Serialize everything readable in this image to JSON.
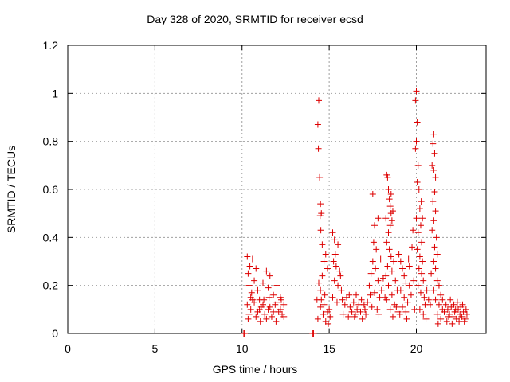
{
  "chart_data": {
    "type": "scatter",
    "title": "Day 328 of 2020, SRMTID for receiver ecsd",
    "xlabel": "GPS time / hours",
    "ylabel": "SRMTID / TECUs",
    "xlim": [
      0,
      24
    ],
    "ylim": [
      0,
      1.2
    ],
    "xticks": [
      0,
      5,
      10,
      15,
      20
    ],
    "yticks": [
      0,
      0.2,
      0.4,
      0.6,
      0.8,
      1,
      1.2
    ],
    "xtick_labels": [
      "0",
      "5",
      "10",
      "15",
      "20"
    ],
    "ytick_labels": [
      "0",
      "0.2",
      "0.4",
      "0.6",
      "0.8",
      "1",
      "1.2"
    ],
    "grid": true,
    "marker": "+",
    "color": "#dd0000",
    "series": [
      {
        "name": "SRMTID",
        "points": [
          [
            10.1,
            0.0
          ],
          [
            10.15,
            0.0
          ],
          [
            14.05,
            0.0
          ],
          [
            14.1,
            0.0
          ],
          [
            10.3,
            0.32
          ],
          [
            10.35,
            0.25
          ],
          [
            10.4,
            0.2
          ],
          [
            10.45,
            0.28
          ],
          [
            10.5,
            0.15
          ],
          [
            10.6,
            0.31
          ],
          [
            10.7,
            0.22
          ],
          [
            10.8,
            0.27
          ],
          [
            10.9,
            0.18
          ],
          [
            11.0,
            0.14
          ],
          [
            11.2,
            0.21
          ],
          [
            11.4,
            0.26
          ],
          [
            11.5,
            0.19
          ],
          [
            11.6,
            0.24
          ],
          [
            11.8,
            0.16
          ],
          [
            12.0,
            0.2
          ],
          [
            12.2,
            0.15
          ],
          [
            12.4,
            0.12
          ],
          [
            10.3,
            0.12
          ],
          [
            10.5,
            0.1
          ],
          [
            10.7,
            0.13
          ],
          [
            10.9,
            0.09
          ],
          [
            11.1,
            0.11
          ],
          [
            11.3,
            0.08
          ],
          [
            11.5,
            0.1
          ],
          [
            11.7,
            0.07
          ],
          [
            11.9,
            0.12
          ],
          [
            12.1,
            0.09
          ],
          [
            12.3,
            0.08
          ],
          [
            10.4,
            0.08
          ],
          [
            10.6,
            0.14
          ],
          [
            10.8,
            0.07
          ],
          [
            11.0,
            0.1
          ],
          [
            11.2,
            0.12
          ],
          [
            11.4,
            0.06
          ],
          [
            11.6,
            0.11
          ],
          [
            11.8,
            0.09
          ],
          [
            12.0,
            0.13
          ],
          [
            12.2,
            0.1
          ],
          [
            12.4,
            0.07
          ],
          [
            10.35,
            0.06
          ],
          [
            10.55,
            0.17
          ],
          [
            11.25,
            0.14
          ],
          [
            11.05,
            0.05
          ],
          [
            11.55,
            0.15
          ],
          [
            11.95,
            0.05
          ],
          [
            12.25,
            0.14
          ],
          [
            14.4,
            0.97
          ],
          [
            14.35,
            0.87
          ],
          [
            14.38,
            0.77
          ],
          [
            14.45,
            0.65
          ],
          [
            14.5,
            0.54
          ],
          [
            14.55,
            0.5
          ],
          [
            14.48,
            0.49
          ],
          [
            14.52,
            0.43
          ],
          [
            14.6,
            0.37
          ],
          [
            14.7,
            0.3
          ],
          [
            14.8,
            0.33
          ],
          [
            14.9,
            0.27
          ],
          [
            14.4,
            0.21
          ],
          [
            14.5,
            0.18
          ],
          [
            14.6,
            0.24
          ],
          [
            14.3,
            0.14
          ],
          [
            14.5,
            0.11
          ],
          [
            14.7,
            0.12
          ],
          [
            14.9,
            0.09
          ],
          [
            14.35,
            0.06
          ],
          [
            14.65,
            0.08
          ],
          [
            14.8,
            0.05
          ],
          [
            15.0,
            0.1
          ],
          [
            15.05,
            0.07
          ],
          [
            14.55,
            0.14
          ],
          [
            14.75,
            0.16
          ],
          [
            14.95,
            0.04
          ],
          [
            15.2,
            0.42
          ],
          [
            15.3,
            0.39
          ],
          [
            15.5,
            0.37
          ],
          [
            15.25,
            0.3
          ],
          [
            15.4,
            0.28
          ],
          [
            15.6,
            0.26
          ],
          [
            15.3,
            0.22
          ],
          [
            15.5,
            0.2
          ],
          [
            15.7,
            0.18
          ],
          [
            15.2,
            0.15
          ],
          [
            15.45,
            0.13
          ],
          [
            15.75,
            0.14
          ],
          [
            15.9,
            0.12
          ],
          [
            16.0,
            0.15
          ],
          [
            16.2,
            0.11
          ],
          [
            16.4,
            0.13
          ],
          [
            16.6,
            0.1
          ],
          [
            16.8,
            0.09
          ],
          [
            17.0,
            0.12
          ],
          [
            15.8,
            0.08
          ],
          [
            16.1,
            0.07
          ],
          [
            16.3,
            0.09
          ],
          [
            16.5,
            0.08
          ],
          [
            16.7,
            0.12
          ],
          [
            16.9,
            0.06
          ],
          [
            15.35,
            0.33
          ],
          [
            15.65,
            0.24
          ],
          [
            16.15,
            0.16
          ],
          [
            16.45,
            0.07
          ],
          [
            16.85,
            0.14
          ],
          [
            17.1,
            0.08
          ],
          [
            17.05,
            0.1
          ],
          [
            16.55,
            0.16
          ],
          [
            17.5,
            0.58
          ],
          [
            17.8,
            0.48
          ],
          [
            17.6,
            0.45
          ],
          [
            17.55,
            0.38
          ],
          [
            17.7,
            0.35
          ],
          [
            17.5,
            0.3
          ],
          [
            17.65,
            0.27
          ],
          [
            17.4,
            0.25
          ],
          [
            17.8,
            0.22
          ],
          [
            17.3,
            0.2
          ],
          [
            17.6,
            0.17
          ],
          [
            17.9,
            0.15
          ],
          [
            17.2,
            0.13
          ],
          [
            17.45,
            0.11
          ],
          [
            17.75,
            0.1
          ],
          [
            18.0,
            0.18
          ],
          [
            18.1,
            0.23
          ],
          [
            17.95,
            0.31
          ],
          [
            17.35,
            0.16
          ],
          [
            17.85,
            0.08
          ],
          [
            18.3,
            0.66
          ],
          [
            18.35,
            0.65
          ],
          [
            18.4,
            0.6
          ],
          [
            18.45,
            0.56
          ],
          [
            18.5,
            0.53
          ],
          [
            18.55,
            0.5
          ],
          [
            18.6,
            0.47
          ],
          [
            18.5,
            0.45
          ],
          [
            18.4,
            0.42
          ],
          [
            18.3,
            0.38
          ],
          [
            18.45,
            0.35
          ],
          [
            18.55,
            0.32
          ],
          [
            18.7,
            0.3
          ],
          [
            18.35,
            0.28
          ],
          [
            18.6,
            0.26
          ],
          [
            18.25,
            0.24
          ],
          [
            18.8,
            0.22
          ],
          [
            18.4,
            0.2
          ],
          [
            18.9,
            0.18
          ],
          [
            18.6,
            0.16
          ],
          [
            18.3,
            0.14
          ],
          [
            18.75,
            0.12
          ],
          [
            18.5,
            0.1
          ],
          [
            18.95,
            0.09
          ],
          [
            18.65,
            0.07
          ],
          [
            18.85,
            0.11
          ],
          [
            18.2,
            0.15
          ],
          [
            18.55,
            0.58
          ],
          [
            18.65,
            0.51
          ],
          [
            18.25,
            0.48
          ],
          [
            19.0,
            0.33
          ],
          [
            19.1,
            0.3
          ],
          [
            19.2,
            0.27
          ],
          [
            19.3,
            0.24
          ],
          [
            19.4,
            0.21
          ],
          [
            19.1,
            0.18
          ],
          [
            19.3,
            0.15
          ],
          [
            19.5,
            0.13
          ],
          [
            19.2,
            0.11
          ],
          [
            19.4,
            0.09
          ],
          [
            19.6,
            0.2
          ],
          [
            19.7,
            0.16
          ],
          [
            19.8,
            0.43
          ],
          [
            19.75,
            0.36
          ],
          [
            19.6,
            0.28
          ],
          [
            19.05,
            0.08
          ],
          [
            19.45,
            0.06
          ],
          [
            19.85,
            0.22
          ],
          [
            19.55,
            0.31
          ],
          [
            19.9,
            0.1
          ],
          [
            20.0,
            1.01
          ],
          [
            19.95,
            0.97
          ],
          [
            20.05,
            0.88
          ],
          [
            20.0,
            0.8
          ],
          [
            19.95,
            0.77
          ],
          [
            20.1,
            0.7
          ],
          [
            20.05,
            0.63
          ],
          [
            20.15,
            0.6
          ],
          [
            20.2,
            0.52
          ],
          [
            20.0,
            0.48
          ],
          [
            20.25,
            0.45
          ],
          [
            20.1,
            0.42
          ],
          [
            20.3,
            0.38
          ],
          [
            20.05,
            0.35
          ],
          [
            20.2,
            0.32
          ],
          [
            20.35,
            0.3
          ],
          [
            20.15,
            0.27
          ],
          [
            20.3,
            0.25
          ],
          [
            20.4,
            0.22
          ],
          [
            20.1,
            0.2
          ],
          [
            20.25,
            0.17
          ],
          [
            20.45,
            0.15
          ],
          [
            20.5,
            0.12
          ],
          [
            20.2,
            0.1
          ],
          [
            20.4,
            0.08
          ],
          [
            20.55,
            0.06
          ],
          [
            20.6,
            0.18
          ],
          [
            20.7,
            0.14
          ],
          [
            20.35,
            0.48
          ],
          [
            20.28,
            0.55
          ],
          [
            21.0,
            0.83
          ],
          [
            20.95,
            0.79
          ],
          [
            21.05,
            0.75
          ],
          [
            20.9,
            0.7
          ],
          [
            21.0,
            0.68
          ],
          [
            21.1,
            0.65
          ],
          [
            21.05,
            0.59
          ],
          [
            20.95,
            0.55
          ],
          [
            21.1,
            0.51
          ],
          [
            21.0,
            0.47
          ],
          [
            20.9,
            0.43
          ],
          [
            21.15,
            0.4
          ],
          [
            21.05,
            0.36
          ],
          [
            21.2,
            0.33
          ],
          [
            21.0,
            0.3
          ],
          [
            21.1,
            0.27
          ],
          [
            20.85,
            0.25
          ],
          [
            21.2,
            0.22
          ],
          [
            21.3,
            0.2
          ],
          [
            21.0,
            0.18
          ],
          [
            21.4,
            0.16
          ],
          [
            21.1,
            0.14
          ],
          [
            21.3,
            0.12
          ],
          [
            21.5,
            0.1
          ],
          [
            21.2,
            0.08
          ],
          [
            21.4,
            0.06
          ],
          [
            21.6,
            0.09
          ],
          [
            21.5,
            0.14
          ],
          [
            20.8,
            0.12
          ],
          [
            21.25,
            0.04
          ],
          [
            21.7,
            0.12
          ],
          [
            21.8,
            0.1
          ],
          [
            21.9,
            0.08
          ],
          [
            22.0,
            0.11
          ],
          [
            22.1,
            0.07
          ],
          [
            22.2,
            0.09
          ],
          [
            22.3,
            0.06
          ],
          [
            22.4,
            0.1
          ],
          [
            22.5,
            0.08
          ],
          [
            22.6,
            0.07
          ],
          [
            22.7,
            0.09
          ],
          [
            22.8,
            0.06
          ],
          [
            22.9,
            0.08
          ],
          [
            21.75,
            0.05
          ],
          [
            21.95,
            0.14
          ],
          [
            22.15,
            0.12
          ],
          [
            22.35,
            0.13
          ],
          [
            22.55,
            0.11
          ],
          [
            22.75,
            0.05
          ],
          [
            22.85,
            0.1
          ],
          [
            22.05,
            0.04
          ],
          [
            22.45,
            0.05
          ],
          [
            22.65,
            0.12
          ],
          [
            21.85,
            0.07
          ],
          [
            22.25,
            0.1
          ]
        ]
      }
    ]
  }
}
